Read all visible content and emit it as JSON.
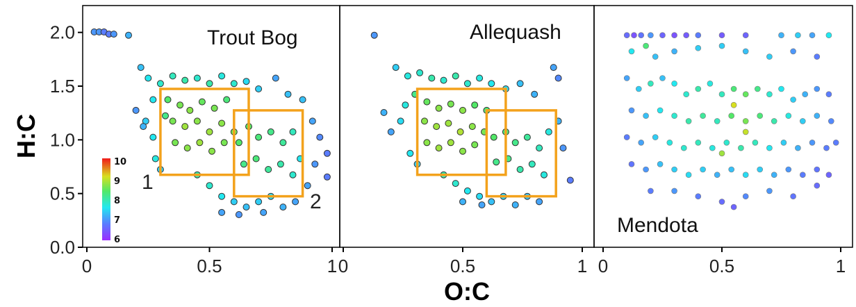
{
  "chart_data": {
    "type": "scatter",
    "xlabel": "O:C",
    "ylabel": "H:C",
    "xlim": [
      0,
      1
    ],
    "ylim": [
      0,
      2.25
    ],
    "y_ticks": [
      "0.0",
      "0.5",
      "1.0",
      "1.5",
      "2.0"
    ],
    "x_ticks": [
      [
        "0",
        "0.5",
        "1"
      ],
      [
        "0",
        "0.5",
        "1"
      ],
      [
        "0",
        "0.5",
        "1"
      ]
    ],
    "colorbar": {
      "min": 6,
      "max": 10,
      "labels": [
        "10",
        "9",
        "8",
        "7",
        "6"
      ]
    },
    "panels": [
      {
        "title": "Trout Bog",
        "boxes": [
          {
            "label": "1",
            "x0": 0.3,
            "x1": 0.66,
            "y0": 0.7,
            "y1": 1.5
          },
          {
            "label": "2",
            "x0": 0.6,
            "x1": 0.88,
            "y0": 0.5,
            "y1": 1.3
          }
        ],
        "points": [
          [
            0.03,
            2.03,
            7.2
          ],
          [
            0.05,
            2.03,
            7.2
          ],
          [
            0.07,
            2.03,
            7.0
          ],
          [
            0.09,
            2.01,
            7.0
          ],
          [
            0.11,
            2.01,
            7.2
          ],
          [
            0.17,
            2.0,
            7.4
          ],
          [
            0.22,
            1.7,
            7.5
          ],
          [
            0.25,
            1.6,
            7.8
          ],
          [
            0.24,
            1.2,
            7.6
          ],
          [
            0.2,
            1.3,
            7.2
          ],
          [
            0.27,
            1.05,
            7.8
          ],
          [
            0.23,
            1.15,
            7.4
          ],
          [
            0.3,
            1.55,
            8.0
          ],
          [
            0.35,
            1.62,
            8.1
          ],
          [
            0.4,
            1.58,
            8.2
          ],
          [
            0.45,
            1.6,
            8.0
          ],
          [
            0.5,
            1.55,
            8.2
          ],
          [
            0.55,
            1.62,
            7.9
          ],
          [
            0.6,
            1.55,
            8.0
          ],
          [
            0.65,
            1.57,
            7.7
          ],
          [
            0.7,
            1.5,
            7.6
          ],
          [
            0.77,
            1.6,
            7.3
          ],
          [
            0.82,
            1.45,
            7.5
          ],
          [
            0.88,
            1.4,
            7.5
          ],
          [
            0.33,
            1.4,
            8.6
          ],
          [
            0.38,
            1.35,
            8.8
          ],
          [
            0.42,
            1.3,
            8.9
          ],
          [
            0.47,
            1.38,
            8.7
          ],
          [
            0.52,
            1.32,
            8.8
          ],
          [
            0.57,
            1.4,
            8.5
          ],
          [
            0.35,
            1.2,
            8.8
          ],
          [
            0.4,
            1.15,
            9.0
          ],
          [
            0.45,
            1.2,
            8.9
          ],
          [
            0.5,
            1.1,
            9.0
          ],
          [
            0.55,
            1.18,
            8.9
          ],
          [
            0.6,
            1.1,
            8.8
          ],
          [
            0.36,
            1.0,
            8.8
          ],
          [
            0.41,
            0.95,
            8.9
          ],
          [
            0.46,
            1.0,
            9.0
          ],
          [
            0.51,
            0.92,
            8.9
          ],
          [
            0.56,
            1.0,
            8.8
          ],
          [
            0.62,
            1.0,
            8.6
          ],
          [
            0.66,
            1.15,
            8.6
          ],
          [
            0.7,
            1.05,
            8.5
          ],
          [
            0.75,
            1.1,
            8.4
          ],
          [
            0.8,
            1.0,
            8.3
          ],
          [
            0.84,
            1.1,
            8.1
          ],
          [
            0.64,
            0.8,
            8.4
          ],
          [
            0.69,
            0.85,
            8.5
          ],
          [
            0.74,
            0.75,
            8.3
          ],
          [
            0.79,
            0.8,
            8.2
          ],
          [
            0.84,
            0.7,
            8.0
          ],
          [
            0.87,
            0.85,
            7.8
          ],
          [
            0.45,
            0.7,
            8.2
          ],
          [
            0.5,
            0.6,
            8.0
          ],
          [
            0.55,
            0.5,
            7.8
          ],
          [
            0.6,
            0.45,
            7.6
          ],
          [
            0.65,
            0.4,
            7.5
          ],
          [
            0.7,
            0.45,
            7.6
          ],
          [
            0.75,
            0.5,
            7.7
          ],
          [
            0.8,
            0.4,
            7.4
          ],
          [
            0.85,
            0.45,
            7.3
          ],
          [
            0.9,
            0.6,
            7.3
          ],
          [
            0.93,
            0.8,
            7.2
          ],
          [
            0.95,
            1.05,
            7.1
          ],
          [
            0.98,
            0.9,
            7.0
          ],
          [
            0.98,
            0.68,
            7.0
          ],
          [
            0.92,
            1.2,
            7.3
          ],
          [
            0.55,
            0.35,
            7.3
          ],
          [
            0.62,
            0.33,
            7.2
          ],
          [
            0.72,
            0.35,
            7.3
          ],
          [
            0.28,
            0.85,
            7.9
          ],
          [
            0.3,
            0.75,
            7.6
          ],
          [
            0.32,
            1.25,
            8.4
          ],
          [
            0.27,
            1.4,
            7.8
          ]
        ]
      },
      {
        "title": "Allequash",
        "boxes": [
          {
            "label": "",
            "x0": 0.31,
            "x1": 0.68,
            "y0": 0.7,
            "y1": 1.5
          },
          {
            "label": "",
            "x0": 0.6,
            "x1": 0.89,
            "y0": 0.5,
            "y1": 1.3
          }
        ],
        "points": [
          [
            0.13,
            2.0,
            7.2
          ],
          [
            0.22,
            1.7,
            7.6
          ],
          [
            0.27,
            1.62,
            7.9
          ],
          [
            0.32,
            1.65,
            8.0
          ],
          [
            0.37,
            1.6,
            8.2
          ],
          [
            0.42,
            1.58,
            8.0
          ],
          [
            0.47,
            1.62,
            8.2
          ],
          [
            0.52,
            1.55,
            8.0
          ],
          [
            0.57,
            1.6,
            7.9
          ],
          [
            0.62,
            1.55,
            7.8
          ],
          [
            0.68,
            1.5,
            7.7
          ],
          [
            0.74,
            1.55,
            7.5
          ],
          [
            0.8,
            1.45,
            7.4
          ],
          [
            0.88,
            1.7,
            7.3
          ],
          [
            0.9,
            1.6,
            7.1
          ],
          [
            0.17,
            1.28,
            7.4
          ],
          [
            0.2,
            1.1,
            7.3
          ],
          [
            0.24,
            1.2,
            7.7
          ],
          [
            0.26,
            1.35,
            7.9
          ],
          [
            0.3,
            1.45,
            8.4
          ],
          [
            0.35,
            1.38,
            8.7
          ],
          [
            0.4,
            1.32,
            8.9
          ],
          [
            0.45,
            1.36,
            8.8
          ],
          [
            0.5,
            1.3,
            8.9
          ],
          [
            0.55,
            1.35,
            8.6
          ],
          [
            0.6,
            1.3,
            8.5
          ],
          [
            0.34,
            1.2,
            8.9
          ],
          [
            0.39,
            1.15,
            9.0
          ],
          [
            0.44,
            1.18,
            9.0
          ],
          [
            0.49,
            1.1,
            9.1
          ],
          [
            0.54,
            1.15,
            8.9
          ],
          [
            0.59,
            1.1,
            8.8
          ],
          [
            0.35,
            1.0,
            8.9
          ],
          [
            0.4,
            0.95,
            9.0
          ],
          [
            0.45,
            1.0,
            9.0
          ],
          [
            0.5,
            0.92,
            8.9
          ],
          [
            0.55,
            0.98,
            8.8
          ],
          [
            0.63,
            1.05,
            8.6
          ],
          [
            0.68,
            1.1,
            8.5
          ],
          [
            0.72,
            1.0,
            8.4
          ],
          [
            0.77,
            1.05,
            8.3
          ],
          [
            0.82,
            0.95,
            8.1
          ],
          [
            0.86,
            1.1,
            7.9
          ],
          [
            0.64,
            0.82,
            8.4
          ],
          [
            0.69,
            0.85,
            8.4
          ],
          [
            0.74,
            0.75,
            8.2
          ],
          [
            0.79,
            0.8,
            8.1
          ],
          [
            0.84,
            0.7,
            7.9
          ],
          [
            0.42,
            0.7,
            8.2
          ],
          [
            0.47,
            0.62,
            8.0
          ],
          [
            0.52,
            0.55,
            7.8
          ],
          [
            0.57,
            0.5,
            7.7
          ],
          [
            0.62,
            0.45,
            7.5
          ],
          [
            0.67,
            0.5,
            7.6
          ],
          [
            0.72,
            0.42,
            7.4
          ],
          [
            0.77,
            0.5,
            7.5
          ],
          [
            0.82,
            0.45,
            7.3
          ],
          [
            0.92,
            0.95,
            7.2
          ],
          [
            0.95,
            0.65,
            7.0
          ],
          [
            0.28,
            0.9,
            7.8
          ],
          [
            0.31,
            0.8,
            7.6
          ],
          [
            0.5,
            0.45,
            7.4
          ],
          [
            0.58,
            0.42,
            7.3
          ],
          [
            0.9,
            1.2,
            7.4
          ]
        ]
      },
      {
        "title": "Mendota",
        "boxes": [],
        "points": [
          [
            0.1,
            2.0,
            6.8
          ],
          [
            0.13,
            2.0,
            6.5
          ],
          [
            0.16,
            2.0,
            6.9
          ],
          [
            0.2,
            2.0,
            7.2
          ],
          [
            0.25,
            2.0,
            6.7
          ],
          [
            0.3,
            2.0,
            6.5
          ],
          [
            0.35,
            2.0,
            6.6
          ],
          [
            0.4,
            2.0,
            7.0
          ],
          [
            0.5,
            2.0,
            6.6
          ],
          [
            0.6,
            2.0,
            6.7
          ],
          [
            0.75,
            2.0,
            7.4
          ],
          [
            0.82,
            2.0,
            7.6
          ],
          [
            0.88,
            2.0,
            7.3
          ],
          [
            0.95,
            2.0,
            7.8
          ],
          [
            0.12,
            1.85,
            7.8
          ],
          [
            0.18,
            1.9,
            8.5
          ],
          [
            0.22,
            1.8,
            7.5
          ],
          [
            0.3,
            1.85,
            7.4
          ],
          [
            0.4,
            1.88,
            7.6
          ],
          [
            0.5,
            1.9,
            7.6
          ],
          [
            0.6,
            1.85,
            7.5
          ],
          [
            0.7,
            1.8,
            7.6
          ],
          [
            0.8,
            1.85,
            7.2
          ],
          [
            0.9,
            1.8,
            7.0
          ],
          [
            0.1,
            1.6,
            7.3
          ],
          [
            0.15,
            1.5,
            7.6
          ],
          [
            0.2,
            1.55,
            8.1
          ],
          [
            0.25,
            1.6,
            7.5
          ],
          [
            0.3,
            1.55,
            7.8
          ],
          [
            0.35,
            1.45,
            8.0
          ],
          [
            0.4,
            1.5,
            8.2
          ],
          [
            0.45,
            1.55,
            7.9
          ],
          [
            0.5,
            1.45,
            8.1
          ],
          [
            0.55,
            1.5,
            8.5
          ],
          [
            0.6,
            1.45,
            8.7
          ],
          [
            0.65,
            1.5,
            8.4
          ],
          [
            0.7,
            1.45,
            8.0
          ],
          [
            0.75,
            1.5,
            7.8
          ],
          [
            0.8,
            1.4,
            7.6
          ],
          [
            0.85,
            1.45,
            7.4
          ],
          [
            0.9,
            1.5,
            7.2
          ],
          [
            0.95,
            1.45,
            7.0
          ],
          [
            0.12,
            1.3,
            7.2
          ],
          [
            0.18,
            1.25,
            7.5
          ],
          [
            0.24,
            1.3,
            7.8
          ],
          [
            0.3,
            1.25,
            8.0
          ],
          [
            0.36,
            1.2,
            8.2
          ],
          [
            0.42,
            1.25,
            8.3
          ],
          [
            0.48,
            1.2,
            8.1
          ],
          [
            0.54,
            1.25,
            8.6
          ],
          [
            0.6,
            1.2,
            8.8
          ],
          [
            0.66,
            1.25,
            8.5
          ],
          [
            0.72,
            1.2,
            8.2
          ],
          [
            0.78,
            1.25,
            7.9
          ],
          [
            0.84,
            1.2,
            7.6
          ],
          [
            0.9,
            1.25,
            7.4
          ],
          [
            0.96,
            1.2,
            7.1
          ],
          [
            0.1,
            1.05,
            7.0
          ],
          [
            0.16,
            1.0,
            7.3
          ],
          [
            0.22,
            1.05,
            7.6
          ],
          [
            0.28,
            1.0,
            7.9
          ],
          [
            0.34,
            0.95,
            8.0
          ],
          [
            0.4,
            1.0,
            8.1
          ],
          [
            0.46,
            0.95,
            7.9
          ],
          [
            0.52,
            1.0,
            8.0
          ],
          [
            0.58,
            0.95,
            8.2
          ],
          [
            0.64,
            1.0,
            8.1
          ],
          [
            0.7,
            0.95,
            7.8
          ],
          [
            0.76,
            1.0,
            7.6
          ],
          [
            0.82,
            0.95,
            7.4
          ],
          [
            0.88,
            1.0,
            7.2
          ],
          [
            0.94,
            0.95,
            7.0
          ],
          [
            0.98,
            1.0,
            7.0
          ],
          [
            0.12,
            0.8,
            6.9
          ],
          [
            0.18,
            0.75,
            7.2
          ],
          [
            0.24,
            0.8,
            7.5
          ],
          [
            0.3,
            0.75,
            7.6
          ],
          [
            0.36,
            0.7,
            7.7
          ],
          [
            0.42,
            0.75,
            7.6
          ],
          [
            0.48,
            0.7,
            7.4
          ],
          [
            0.54,
            0.75,
            7.5
          ],
          [
            0.6,
            0.7,
            7.7
          ],
          [
            0.66,
            0.75,
            7.6
          ],
          [
            0.72,
            0.7,
            7.4
          ],
          [
            0.78,
            0.75,
            7.2
          ],
          [
            0.84,
            0.7,
            7.0
          ],
          [
            0.9,
            0.75,
            6.9
          ],
          [
            0.2,
            0.55,
            7.0
          ],
          [
            0.3,
            0.55,
            7.2
          ],
          [
            0.4,
            0.5,
            7.0
          ],
          [
            0.5,
            0.45,
            6.8
          ],
          [
            0.55,
            0.4,
            6.7
          ],
          [
            0.6,
            0.5,
            7.1
          ],
          [
            0.7,
            0.55,
            7.2
          ],
          [
            0.8,
            0.5,
            6.9
          ],
          [
            0.9,
            0.6,
            6.8
          ],
          [
            0.95,
            0.7,
            6.7
          ],
          [
            0.5,
            0.9,
            9.0
          ],
          [
            0.6,
            1.1,
            9.2
          ],
          [
            0.55,
            1.35,
            9.3
          ]
        ]
      }
    ]
  }
}
